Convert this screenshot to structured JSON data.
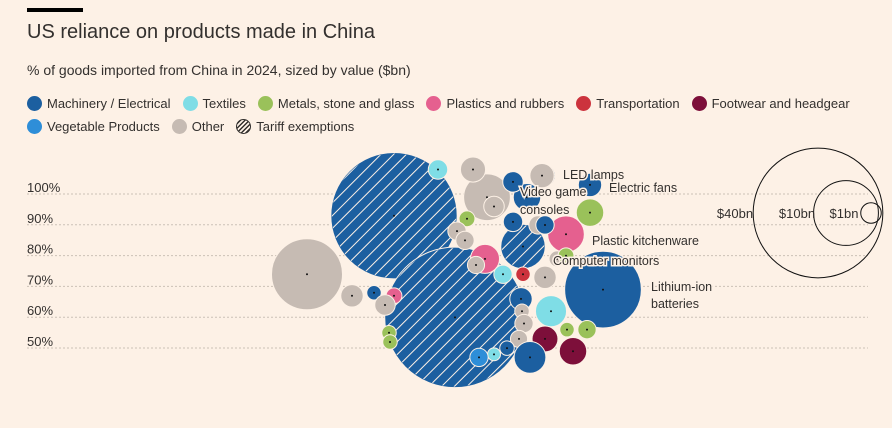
{
  "title": "US reliance on products made in China",
  "subtitle": "% of goods imported from China in 2024, sized by value ($bn)",
  "colors": {
    "background": "#fdf1e6",
    "machinery": "#1c5fa0",
    "textiles": "#7fdde6",
    "metals": "#9ac15a",
    "plastics": "#e5608f",
    "transportation": "#cc333d",
    "footwear": "#7d0f3a",
    "vegetable": "#2e8ed8",
    "other": "#c6bbb3"
  },
  "legend": {
    "row1": [
      {
        "key": "machinery",
        "label": "Machinery / Electrical"
      },
      {
        "key": "textiles",
        "label": "Textiles"
      },
      {
        "key": "metals",
        "label": "Metals, stone and glass"
      },
      {
        "key": "plastics",
        "label": "Plastics and rubbers"
      },
      {
        "key": "transportation",
        "label": "Transportation"
      },
      {
        "key": "footwear",
        "label": "Footwear and headgear"
      }
    ],
    "row2": [
      {
        "key": "vegetable",
        "label": "Vegetable Products"
      },
      {
        "key": "other",
        "label": "Other"
      },
      {
        "key": "tariff",
        "label": "Tariff exemptions"
      }
    ]
  },
  "chart_data": {
    "type": "scatter",
    "y_axis": {
      "ticks": [
        50,
        60,
        70,
        80,
        90,
        100
      ],
      "tick_labels": [
        "50%",
        "60%",
        "70%",
        "80%",
        "90%",
        "100%"
      ],
      "ylim": [
        45,
        103
      ]
    },
    "size_legend": [
      {
        "label": "$40bn",
        "value": 40
      },
      {
        "label": "$10bn",
        "value": 10
      },
      {
        "label": "$1bn",
        "value": 1
      }
    ],
    "bubbles": [
      {
        "category": "machinery",
        "share": 91,
        "value": 38,
        "tariff_exempt": true
      },
      {
        "category": "machinery",
        "share": 58,
        "value": 47,
        "tariff_exempt": true
      },
      {
        "category": "other",
        "share": 72,
        "value": 12
      },
      {
        "category": "machinery",
        "share": 67,
        "value": 14,
        "label": "Lithium-ion batteries"
      },
      {
        "category": "machinery",
        "share": 81,
        "value": 4.7,
        "tariff_exempt": true,
        "label": "Computer monitors"
      },
      {
        "category": "plastics",
        "share": 85,
        "value": 3.2,
        "label": "Plastic kitchenware"
      },
      {
        "category": "machinery",
        "share": 97,
        "value": 1.8,
        "label": "Video game consoles"
      },
      {
        "category": "machinery",
        "share": 104,
        "value": 1.4,
        "label": "LED lamps"
      },
      {
        "category": "machinery",
        "share": 101,
        "value": 1.3,
        "label": "Electric fans"
      },
      {
        "category": "other",
        "share": 97,
        "value": 5.2
      },
      {
        "category": "textiles",
        "share": 106,
        "value": 0.9
      },
      {
        "category": "other",
        "share": 106,
        "value": 1.5
      },
      {
        "category": "machinery",
        "share": 102,
        "value": 1.0
      },
      {
        "category": "other",
        "share": 104,
        "value": 1.4
      },
      {
        "category": "other",
        "share": 94,
        "value": 1.0
      },
      {
        "category": "metals",
        "share": 92,
        "value": 1.8
      },
      {
        "category": "metals",
        "share": 90,
        "value": 0.6
      },
      {
        "category": "other",
        "share": 86,
        "value": 0.8
      },
      {
        "category": "other",
        "share": 83,
        "value": 0.8
      },
      {
        "category": "machinery",
        "share": 89,
        "value": 0.9
      },
      {
        "category": "other",
        "share": 88,
        "value": 0.8
      },
      {
        "category": "machinery",
        "share": 88,
        "value": 0.8
      },
      {
        "category": "other",
        "share": 77,
        "value": 0.6
      },
      {
        "category": "plastics",
        "share": 77,
        "value": 2.0
      },
      {
        "category": "textiles",
        "share": 72,
        "value": 0.8
      },
      {
        "category": "transportation",
        "share": 72,
        "value": 0.5
      },
      {
        "category": "other",
        "share": 71,
        "value": 1.2
      },
      {
        "category": "other",
        "share": 75,
        "value": 0.7
      },
      {
        "category": "metals",
        "share": 78,
        "value": 0.6
      },
      {
        "category": "other",
        "share": 65,
        "value": 1.2
      },
      {
        "category": "machinery",
        "share": 66,
        "value": 0.5
      },
      {
        "category": "plastics",
        "share": 65,
        "value": 0.6
      },
      {
        "category": "other",
        "share": 62,
        "value": 1.0
      },
      {
        "category": "machinery",
        "share": 64,
        "value": 1.2
      },
      {
        "category": "textiles",
        "share": 60,
        "value": 2.3
      },
      {
        "category": "other",
        "share": 60,
        "value": 0.5
      },
      {
        "category": "other",
        "share": 56,
        "value": 0.8
      },
      {
        "category": "metals",
        "share": 53,
        "value": 0.5
      },
      {
        "category": "other",
        "share": 51,
        "value": 0.7
      },
      {
        "category": "footwear",
        "share": 51,
        "value": 1.6
      },
      {
        "category": "metals",
        "share": 54,
        "value": 0.5
      },
      {
        "category": "metals",
        "share": 54,
        "value": 0.8
      },
      {
        "category": "footwear",
        "share": 47,
        "value": 1.8
      },
      {
        "category": "machinery",
        "share": 48,
        "value": 0.5
      },
      {
        "category": "textiles",
        "share": 46,
        "value": 0.4
      },
      {
        "category": "machinery",
        "share": 45,
        "value": 2.4
      },
      {
        "category": "vegetable",
        "share": 45,
        "value": 0.8
      },
      {
        "category": "metals",
        "share": 50,
        "value": 0.5
      }
    ]
  }
}
